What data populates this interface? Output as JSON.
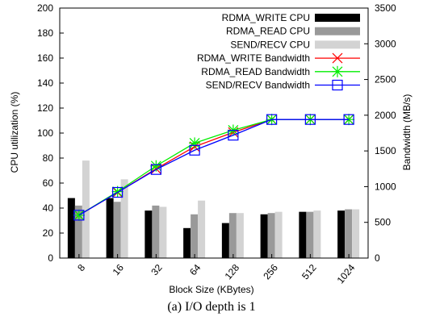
{
  "chart_data": {
    "type": "bar",
    "caption": "(a) I/O depth is 1",
    "xlabel": "Block Size (KBytes)",
    "ylabel": "CPU utilization (%)",
    "y2label": "Bandwidth (MB/s)",
    "categories": [
      "8",
      "16",
      "32",
      "64",
      "128",
      "256",
      "512",
      "1024"
    ],
    "ylim": [
      0,
      200
    ],
    "y2lim": [
      0,
      3500
    ],
    "yticks": [
      0,
      20,
      40,
      60,
      80,
      100,
      120,
      140,
      160,
      180,
      200
    ],
    "y2ticks": [
      0,
      500,
      1000,
      1500,
      2000,
      2500,
      3000,
      3500
    ],
    "legend_position": "top-right",
    "bar_series": [
      {
        "name": "RDMA_WRITE CPU",
        "color": "#000000",
        "values": [
          48,
          48,
          38,
          24,
          28,
          35,
          37,
          38
        ]
      },
      {
        "name": "RDMA_READ CPU",
        "color": "#999999",
        "values": [
          42,
          45,
          42,
          35,
          36,
          36,
          37,
          39
        ]
      },
      {
        "name": "SEND/RECV CPU",
        "color": "#d3d3d3",
        "values": [
          78,
          63,
          41,
          46,
          36,
          37,
          38,
          39
        ]
      }
    ],
    "line_series": [
      {
        "name": "RDMA_WRITE Bandwidth",
        "color": "#ff0000",
        "marker": "x",
        "values": [
          600,
          920,
          1250,
          1560,
          1760,
          1940,
          1940,
          1940
        ]
      },
      {
        "name": "RDMA_READ Bandwidth",
        "color": "#00ee00",
        "marker": "asterisk",
        "values": [
          600,
          930,
          1290,
          1610,
          1790,
          1940,
          1940,
          1940
        ]
      },
      {
        "name": "SEND/RECV Bandwidth",
        "color": "#0000ff",
        "marker": "square",
        "values": [
          600,
          920,
          1240,
          1510,
          1720,
          1940,
          1940,
          1940
        ]
      }
    ]
  }
}
